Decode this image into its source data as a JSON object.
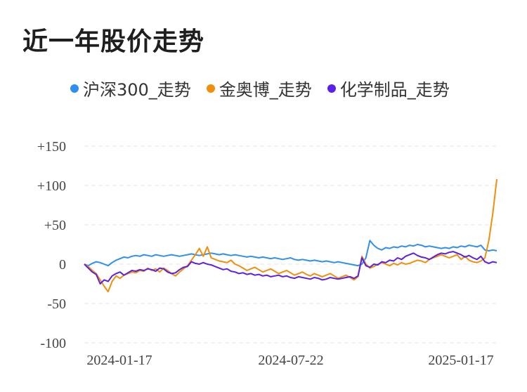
{
  "title": "近一年股价走势",
  "chart_data": {
    "type": "line",
    "y_ticks": [
      "+150",
      "+100",
      "+50",
      "0",
      "-50",
      "-100"
    ],
    "y_tick_values": [
      150,
      100,
      50,
      0,
      -50,
      -100
    ],
    "ylim": [
      -100,
      150
    ],
    "x_tick_labels": [
      "2024-01-17",
      "2024-07-22",
      "2025-01-17"
    ],
    "grid": true,
    "legend_position": "top",
    "series": [
      {
        "name": "沪深300_走势",
        "color": "#2f8ff0",
        "values": [
          0,
          -2,
          1,
          3,
          2,
          0,
          -2,
          2,
          5,
          7,
          9,
          8,
          10,
          11,
          10,
          12,
          11,
          10,
          12,
          11,
          10,
          11,
          12,
          11,
          10,
          11,
          12,
          13,
          12,
          11,
          12,
          13,
          14,
          13,
          12,
          13,
          12,
          11,
          12,
          11,
          10,
          9,
          10,
          9,
          8,
          9,
          8,
          7,
          8,
          7,
          6,
          7,
          8,
          6,
          5,
          6,
          5,
          4,
          5,
          4,
          3,
          4,
          3,
          2,
          3,
          2,
          1,
          0,
          -1,
          -2,
          0,
          8,
          30,
          24,
          20,
          18,
          21,
          20,
          22,
          21,
          23,
          22,
          24,
          23,
          25,
          24,
          22,
          23,
          22,
          21,
          20,
          21,
          20,
          22,
          21,
          23,
          22,
          24,
          23,
          22,
          24,
          18,
          17,
          18,
          17
        ]
      },
      {
        "name": "金奥博_走势",
        "color": "#f0900a",
        "values": [
          0,
          -3,
          -8,
          -12,
          -20,
          -28,
          -35,
          -22,
          -15,
          -18,
          -14,
          -12,
          -10,
          -11,
          -8,
          -9,
          -5,
          -8,
          -6,
          -10,
          -5,
          -8,
          -12,
          -15,
          -10,
          -6,
          -2,
          5,
          12,
          20,
          10,
          22,
          8,
          6,
          4,
          3,
          2,
          5,
          0,
          -2,
          -5,
          -8,
          -6,
          -4,
          -7,
          -10,
          -8,
          -6,
          -9,
          -12,
          -10,
          -8,
          -11,
          -14,
          -12,
          -10,
          -13,
          -15,
          -12,
          -14,
          -16,
          -14,
          -12,
          -15,
          -18,
          -16,
          -14,
          -17,
          -20,
          -16,
          10,
          0,
          -5,
          -3,
          0,
          2,
          0,
          -2,
          1,
          -1,
          2,
          0,
          1,
          3,
          5,
          4,
          2,
          6,
          8,
          10,
          12,
          10,
          8,
          10,
          12,
          6,
          10,
          5,
          3,
          2,
          4,
          8,
          30,
          65,
          108
        ]
      },
      {
        "name": "化学制品_走势",
        "color": "#5b1fe6",
        "values": [
          0,
          -5,
          -10,
          -13,
          -25,
          -20,
          -22,
          -15,
          -12,
          -10,
          -14,
          -11,
          -8,
          -9,
          -7,
          -8,
          -6,
          -7,
          -9,
          -5,
          -6,
          -10,
          -12,
          -11,
          -7,
          -4,
          -3,
          3,
          1,
          0,
          2,
          0,
          -1,
          -3,
          -5,
          -7,
          -6,
          -9,
          -10,
          -12,
          -11,
          -13,
          -12,
          -14,
          -13,
          -15,
          -14,
          -16,
          -15,
          -14,
          -16,
          -15,
          -17,
          -18,
          -16,
          -17,
          -18,
          -19,
          -17,
          -18,
          -20,
          -19,
          -17,
          -18,
          -19,
          -18,
          -17,
          -16,
          -18,
          -15,
          8,
          -2,
          -4,
          0,
          -1,
          3,
          2,
          5,
          4,
          8,
          6,
          10,
          12,
          14,
          11,
          9,
          8,
          6,
          9,
          12,
          14,
          13,
          15,
          16,
          14,
          12,
          9,
          11,
          8,
          6,
          10,
          3,
          1,
          3,
          2
        ]
      }
    ]
  }
}
